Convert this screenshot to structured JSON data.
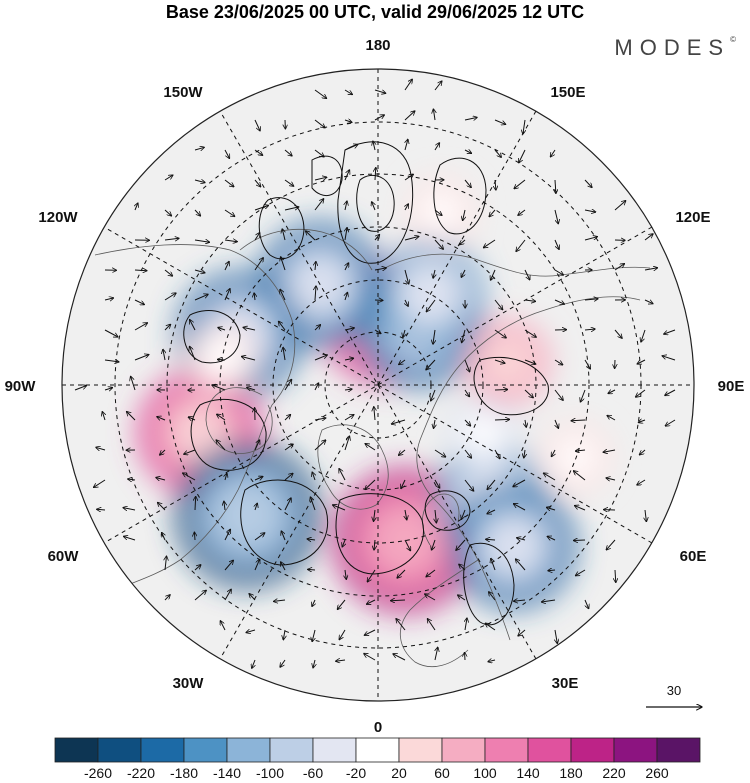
{
  "title": "Base 23/06/2025 00 UTC, valid 29/06/2025 12 UTC",
  "brand": "MODES",
  "brand_mark": "©",
  "longitude_labels": {
    "lon_0": "0",
    "lon_30e": "30E",
    "lon_60e": "60E",
    "lon_90e": "90E",
    "lon_120e": "120E",
    "lon_150e": "150E",
    "lon_180": "180",
    "lon_150w": "150W",
    "lon_120w": "120W",
    "lon_90w": "90W",
    "lon_60w": "60W",
    "lon_30w": "30W"
  },
  "wind_reference": {
    "value": "30"
  },
  "colorbar": {
    "tick_labels": [
      "-260",
      "-220",
      "-180",
      "-140",
      "-100",
      "-60",
      "-20",
      "20",
      "60",
      "100",
      "140",
      "180",
      "220",
      "260"
    ],
    "colors": [
      "#0d3553",
      "#0f4f80",
      "#1c6aa6",
      "#4d92c4",
      "#8cb4d8",
      "#bdcfe6",
      "#e3e6f2",
      "#ffffff",
      "#fbd9d9",
      "#f5adc2",
      "#ee7fb0",
      "#e0529e",
      "#bd2387",
      "#8c1480",
      "#5a1466"
    ]
  },
  "anomalies": [
    {
      "lat": 78,
      "lon": 175,
      "value": 180
    },
    {
      "lat": 76,
      "lon": 145,
      "value": -180
    },
    {
      "lat": 70,
      "lon": 150,
      "value": -140
    },
    {
      "lat": 68,
      "lon": -150,
      "value": -180
    },
    {
      "lat": 62,
      "lon": -110,
      "value": -180
    },
    {
      "lat": 55,
      "lon": -75,
      "value": 180
    },
    {
      "lat": 55,
      "lon": -45,
      "value": -220
    },
    {
      "lat": 60,
      "lon": 10,
      "value": 220
    },
    {
      "lat": 60,
      "lon": 45,
      "value": -140
    },
    {
      "lat": 50,
      "lon": 40,
      "value": -180
    },
    {
      "lat": 65,
      "lon": 100,
      "value": 100
    },
    {
      "lat": 68,
      "lon": 65,
      "value": -60
    },
    {
      "lat": 50,
      "lon": 70,
      "value": 60
    },
    {
      "lat": 60,
      "lon": -100,
      "value": 60
    },
    {
      "lat": 55,
      "lon": 160,
      "value": 60
    }
  ]
}
